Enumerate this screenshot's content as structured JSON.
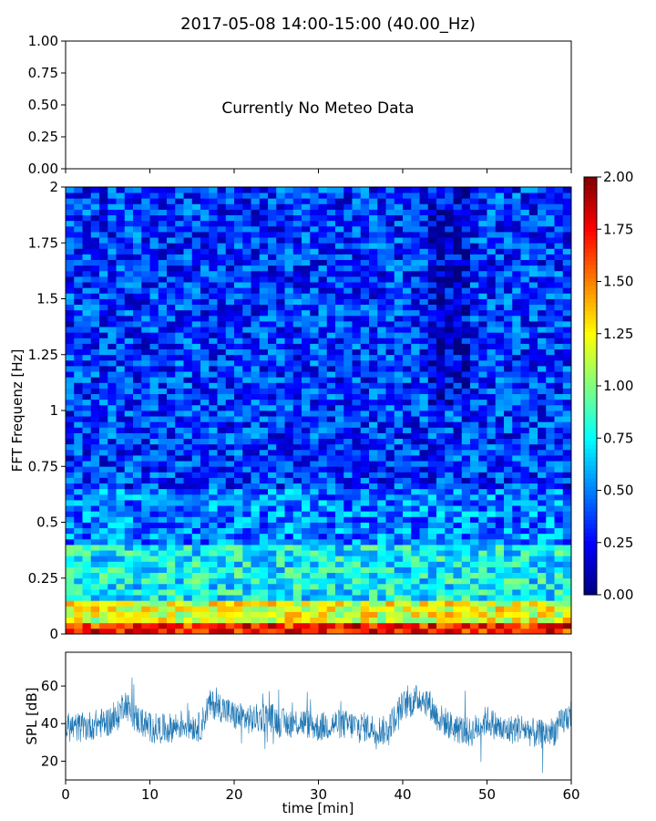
{
  "figure": {
    "title": "2017-05-08 14:00-15:00 (40.00_Hz)"
  },
  "chart_data": [
    {
      "type": "line",
      "panel": "meteo",
      "message": "Currently No Meteo Data",
      "ylim": [
        0,
        1
      ],
      "yticks": [
        "0.00",
        "0.25",
        "0.50",
        "0.75",
        "1.00"
      ],
      "xlim": [
        0,
        60
      ],
      "tick_labels_x_hidden": true
    },
    {
      "type": "heatmap",
      "panel": "spectrogram",
      "ylabel": "FFT Frequenz [Hz]",
      "xlim": [
        0,
        60
      ],
      "ylim": [
        0,
        2
      ],
      "yticks": [
        "0",
        "0.25",
        "0.5",
        "0.75",
        "1",
        "1.25",
        "1.5",
        "1.75",
        "2"
      ],
      "colormap": "jet",
      "colorbar": {
        "range": [
          0,
          2
        ],
        "ticks": [
          "0.00",
          "0.25",
          "0.50",
          "0.75",
          "1.00",
          "1.25",
          "1.50",
          "1.75",
          "2.00"
        ]
      },
      "time_bins": 60,
      "freq_bins": 80
    },
    {
      "type": "line",
      "panel": "spl",
      "xlabel": "time [min]",
      "ylabel": "SPL [dB]",
      "xlim": [
        0,
        60
      ],
      "ylim": [
        10,
        78
      ],
      "xticks": [
        "0",
        "10",
        "20",
        "30",
        "40",
        "50",
        "60"
      ],
      "yticks": [
        "20",
        "40",
        "60"
      ],
      "color": "#1f77b4",
      "series": [
        {
          "x": [
            0,
            2,
            4,
            6,
            7,
            8,
            10,
            12,
            14,
            16,
            17,
            18,
            20,
            22,
            24,
            26,
            28,
            30,
            32,
            34,
            36,
            38,
            39,
            40,
            41,
            42,
            43,
            44,
            46,
            48,
            50,
            52,
            54,
            56,
            58,
            60
          ],
          "values": [
            38,
            38,
            40,
            42,
            52,
            44,
            38,
            37,
            40,
            38,
            50,
            50,
            44,
            42,
            44,
            40,
            41,
            38,
            40,
            39,
            38,
            36,
            43,
            50,
            51,
            54,
            52,
            44,
            38,
            35,
            42,
            36,
            38,
            34,
            36,
            46
          ]
        }
      ]
    }
  ]
}
